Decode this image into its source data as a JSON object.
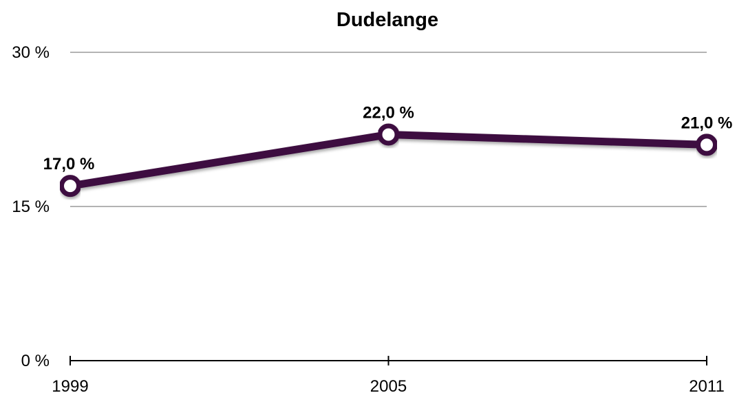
{
  "chart_data": {
    "type": "line",
    "title": "Dudelange",
    "xlabel": "",
    "ylabel": "",
    "categories": [
      "1999",
      "2005",
      "2011"
    ],
    "series": [
      {
        "values": [
          17.0,
          22.0,
          21.0
        ],
        "data_labels": [
          "17,0 %",
          "22,0 %",
          "21,0 %"
        ],
        "color": "#3d1040"
      }
    ],
    "ylim": [
      0,
      30
    ],
    "y_ticks": [
      0,
      15,
      30
    ],
    "y_tick_labels": [
      "0 %",
      "15 %",
      "30 %"
    ],
    "grid": true,
    "legend": "none",
    "colors": {
      "line": "#3d1040",
      "marker_fill": "#ffffff",
      "gridline": "#b3b3b3",
      "axis": "#000000"
    }
  }
}
